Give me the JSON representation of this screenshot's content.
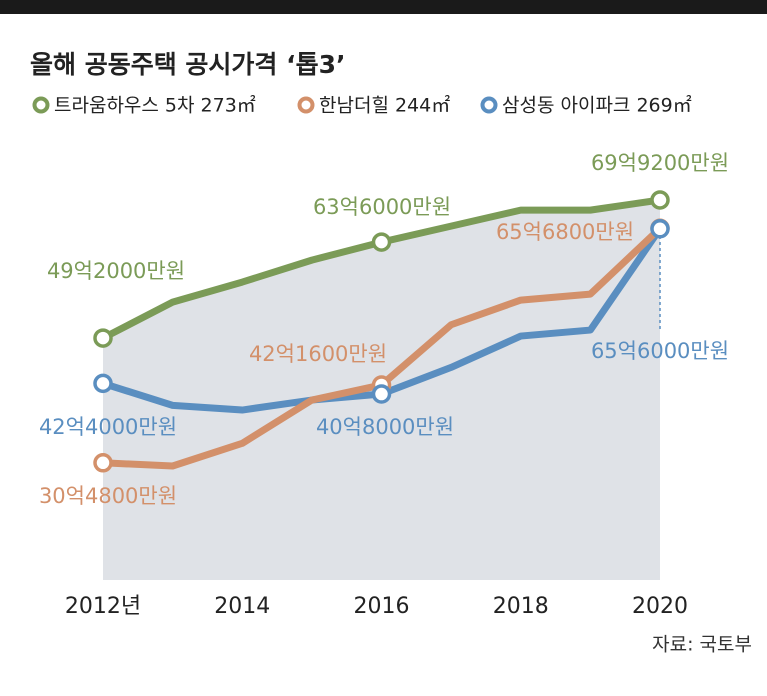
{
  "chart_data": {
    "type": "line",
    "title": "올해 공동주택 공시가격 ‘톱3’",
    "source": "자료: 국토부",
    "categories": [
      "2012년",
      null,
      "2014",
      null,
      "2016",
      null,
      "2018",
      null,
      "2020"
    ],
    "series": [
      {
        "name": "트라움하우스 5차 273㎡",
        "color": "#7b9b57",
        "values": [
          49.2,
          54.6,
          57.6,
          60.9,
          63.6,
          66.0,
          68.4,
          68.4,
          69.92
        ],
        "value_labels": [
          "49억2000만원",
          null,
          null,
          null,
          "63억6000만원",
          null,
          null,
          null,
          "69억9200만원"
        ]
      },
      {
        "name": "한남더힐 244㎡",
        "color": "#d3906a",
        "values": [
          30.48,
          30.0,
          33.4,
          39.9,
          42.16,
          51.2,
          54.9,
          55.8,
          65.68
        ],
        "value_labels": [
          "30억4800만원",
          null,
          null,
          null,
          "42억1600만원",
          null,
          null,
          null,
          "65억6800만원"
        ]
      },
      {
        "name": "삼성동 아이파크 269㎡",
        "color": "#5a8ec0",
        "values": [
          42.4,
          39.1,
          38.4,
          39.9,
          40.8,
          44.8,
          49.5,
          50.4,
          65.6
        ],
        "value_labels": [
          "42억4000만원",
          null,
          null,
          null,
          "40억8000만원",
          null,
          null,
          null,
          "65억6000만원"
        ]
      }
    ]
  }
}
